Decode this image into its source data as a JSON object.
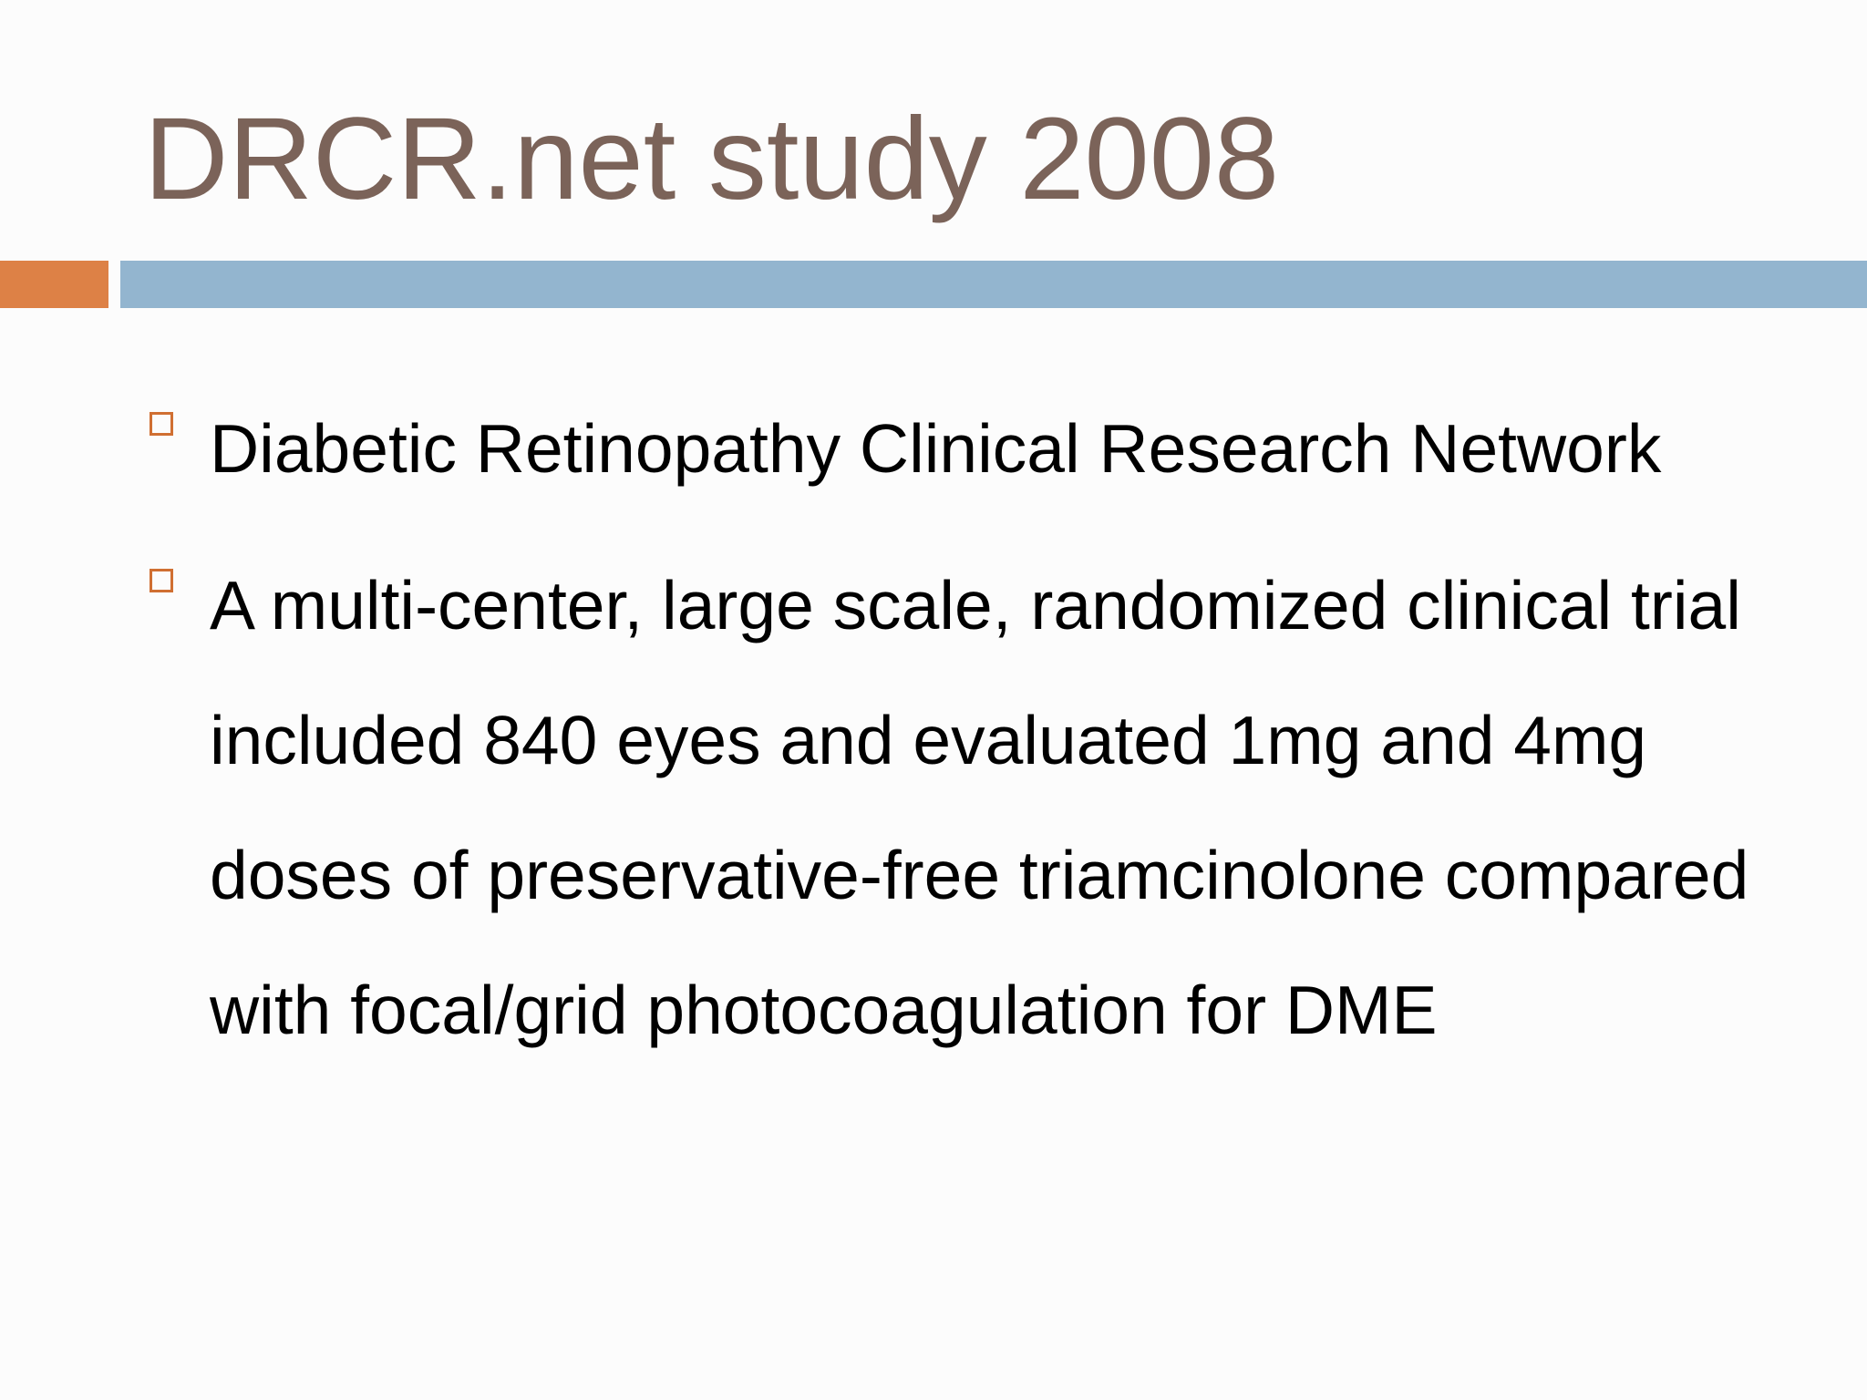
{
  "slide": {
    "title": "DRCR.net study 2008",
    "colors": {
      "title": "#7b6359",
      "accent_orange": "#dd8146",
      "accent_blue": "#93b5cf",
      "bullet_marker": "#d06f32",
      "body_text": "#000000"
    },
    "bullets": [
      {
        "marker_icon": "hollow-square-icon",
        "text": "Diabetic Retinopathy Clinical Research Network"
      },
      {
        "marker_icon": "hollow-square-icon",
        "text": "A multi-center, large scale, randomized clinical trial included 840 eyes and evaluated 1mg and 4mg doses of preservative-free triamcinolone compared with focal/grid photocoagulation for DME"
      }
    ]
  }
}
